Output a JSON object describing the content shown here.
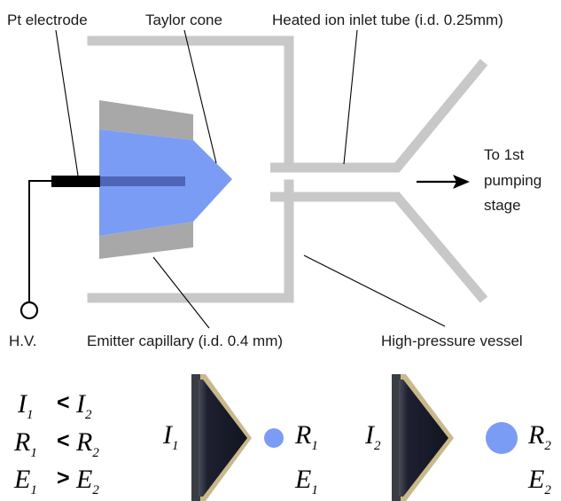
{
  "labels": {
    "pt_electrode": "Pt electrode",
    "taylor_cone": "Taylor cone",
    "inlet_tube": "Heated ion inlet tube (i.d. 0.25mm)",
    "to_pumping": [
      "To 1st",
      "pumping",
      "stage"
    ],
    "hv": "H.V.",
    "emitter": "Emitter capillary (i.d. 0.4 mm)",
    "vessel": "High-pressure vessel"
  },
  "relations": [
    {
      "left": "I",
      "left_sub": "1",
      "op": "<",
      "right": "I",
      "right_sub": "2"
    },
    {
      "left": "R",
      "left_sub": "1",
      "op": "<",
      "right": "R",
      "right_sub": "2"
    },
    {
      "left": "E",
      "left_sub": "1",
      "op": ">",
      "right": "E",
      "right_sub": "2"
    }
  ],
  "panel_1": {
    "current": "I",
    "current_sub": "1",
    "radius": "R",
    "radius_sub": "1",
    "field": "E",
    "field_sub": "1"
  },
  "panel_2": {
    "current": "I",
    "current_sub": "2",
    "radius": "R",
    "radius_sub": "2",
    "field": "E",
    "field_sub": "2"
  },
  "colors": {
    "liquid": "#7b9cf5",
    "capillary": "#a8a8a8",
    "vessel": "#c8c8c8",
    "droplet": "#7b9cf5"
  }
}
